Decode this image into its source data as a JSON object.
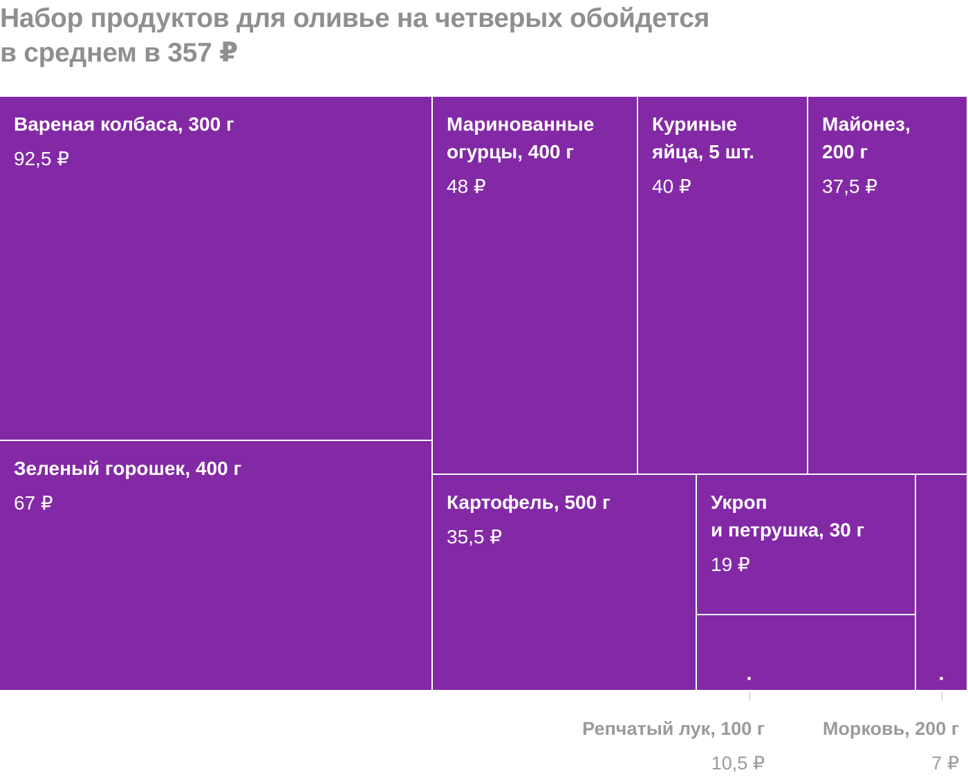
{
  "title_line1": "Набор продуктов для оливье на четверых обойдется",
  "title_line2": "в среднем в 357 ₽",
  "tiles": [
    {
      "name": "Вареная колбаса, 300 г",
      "value_label": "92,5 ₽"
    },
    {
      "name": "Зеленый горошек, 400 г",
      "value_label": "67 ₽"
    },
    {
      "name": "Маринованные\nогурцы, 400 г",
      "value_label": "48 ₽"
    },
    {
      "name": "Куриные\nяйца, 5 шт.",
      "value_label": "40 ₽"
    },
    {
      "name": "Майонез,\n200 г",
      "value_label": "37,5 ₽"
    },
    {
      "name": "Картофель, 500 г",
      "value_label": "35,5 ₽"
    },
    {
      "name": "Укроп\nи петрушка, 30 г",
      "value_label": "19 ₽"
    },
    {
      "name": "Репчатый лук, 100 г",
      "value_label": "10,5 ₽"
    },
    {
      "name": "Морковь, 200 г",
      "value_label": "7 ₽"
    }
  ],
  "colors": {
    "tile_fill": "#8329a6",
    "tile_border": "#ffffff",
    "title": "#8f8f8f",
    "external_label": "#9a9a9a"
  },
  "chart_data": {
    "type": "treemap",
    "title": "Набор продуктов для оливье на четверых обойдется в среднем в 357 ₽",
    "unit": "₽",
    "items": [
      {
        "label": "Вареная колбаса, 300 г",
        "value": 92.5
      },
      {
        "label": "Зеленый горошек, 400 г",
        "value": 67
      },
      {
        "label": "Маринованные огурцы, 400 г",
        "value": 48
      },
      {
        "label": "Куриные яйца, 5 шт.",
        "value": 40
      },
      {
        "label": "Майонез, 200 г",
        "value": 37.5
      },
      {
        "label": "Картофель, 500 г",
        "value": 35.5
      },
      {
        "label": "Укроп и петрушка, 30 г",
        "value": 19
      },
      {
        "label": "Репчатый лук, 100 г",
        "value": 10.5
      },
      {
        "label": "Морковь, 200 г",
        "value": 7
      }
    ],
    "total": 357
  }
}
